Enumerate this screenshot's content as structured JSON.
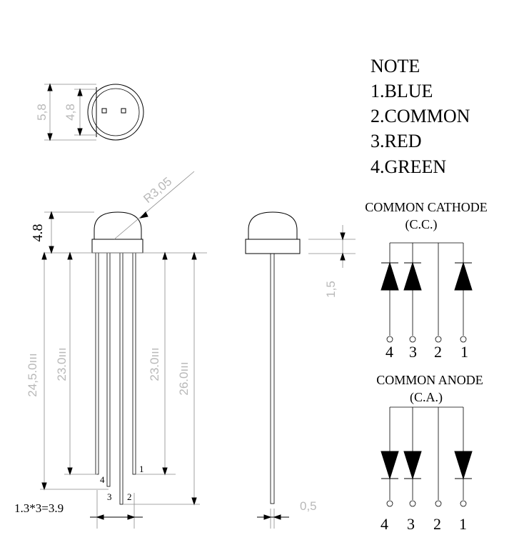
{
  "note": {
    "title": "NOTE",
    "items": [
      "1.BLUE",
      "2.COMMON",
      "3.RED",
      "4.GREEN"
    ]
  },
  "common_cathode": {
    "title": "COMMON CATHODE",
    "abbr": "(C.C.)",
    "pins": [
      "4",
      "3",
      "2",
      "1"
    ]
  },
  "common_anode": {
    "title": "COMMON ANODE",
    "abbr": "(C.A.)",
    "pins": [
      "4",
      "3",
      "2",
      "1"
    ]
  },
  "dimensions": {
    "outer_diameter": "5,8",
    "inner_diameter": "4,8",
    "radius": "R3,05",
    "dome_height": "4.8",
    "lead_24_5": "24,5.0ııı",
    "lead_23_0_left": "23.0ııı",
    "lead_23_0_right": "23.0ııı",
    "lead_26_0": "26.0ııı",
    "flange": "1,5",
    "lead_width": "0,5",
    "pitch": "1.3*3=3.9"
  },
  "lead_numbers": [
    "4",
    "3",
    "2",
    "1"
  ],
  "colors": {
    "line": "#000000",
    "dimension_text": "#b8b8b8"
  }
}
